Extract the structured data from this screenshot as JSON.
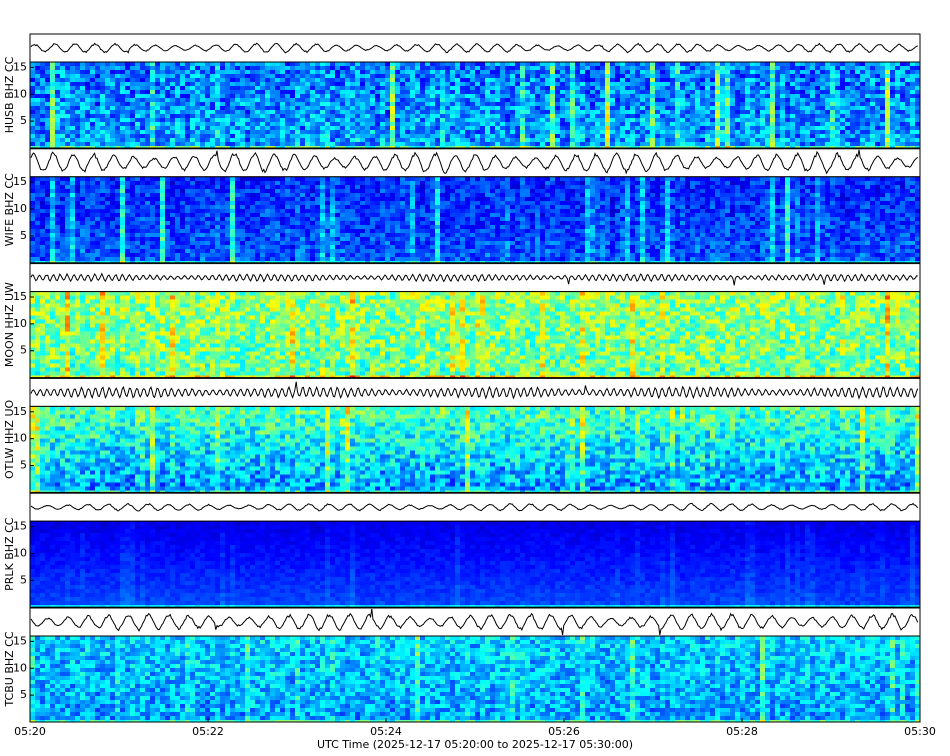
{
  "chart_data": [
    {
      "type": "spectrogram",
      "title": "HUSB BHZ CC",
      "ylim": [
        0,
        16
      ],
      "yticks": [
        5,
        10,
        15
      ]
    },
    {
      "type": "spectrogram",
      "title": "WIFE BHZ CC",
      "ylim": [
        0,
        16
      ],
      "yticks": [
        5,
        10,
        15
      ]
    },
    {
      "type": "spectrogram",
      "title": "MOON HHZ UW",
      "ylim": [
        0,
        16
      ],
      "yticks": [
        5,
        10,
        15
      ]
    },
    {
      "type": "spectrogram",
      "title": "OTLW HHZ UO",
      "ylim": [
        0,
        16
      ],
      "yticks": [
        5,
        10,
        15
      ]
    },
    {
      "type": "spectrogram",
      "title": "PRLK BHZ CC",
      "ylim": [
        0,
        16
      ],
      "yticks": [
        5,
        10,
        15
      ]
    },
    {
      "type": "spectrogram",
      "title": "TCBU BHZ CC",
      "ylim": [
        0,
        16
      ],
      "yticks": [
        5,
        10,
        15
      ],
      "xlabel": "UTC Time (2025-12-17 05:20:00 to 2025-12-17 05:30:00)",
      "xlim": [
        0,
        10
      ],
      "xticks": [
        {
          "value": 0,
          "label": "05:20"
        },
        {
          "value": 2,
          "label": "05:22"
        },
        {
          "value": 4,
          "label": "05:24"
        },
        {
          "value": 6,
          "label": "05:26"
        },
        {
          "value": 8,
          "label": "05:28"
        },
        {
          "value": 10,
          "label": "05:30"
        }
      ]
    }
  ]
}
